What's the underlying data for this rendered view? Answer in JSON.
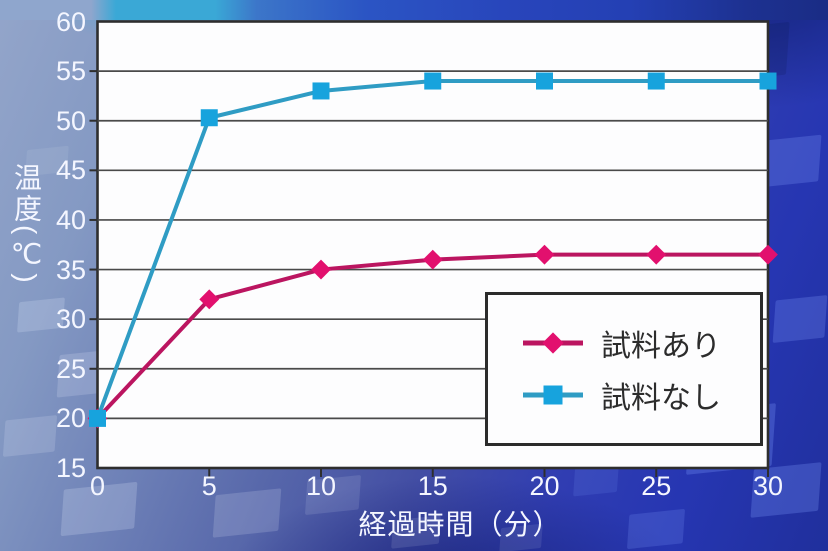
{
  "chart_data": {
    "type": "line",
    "xlabel": "経過時間（分）",
    "ylabel": "温度(℃)",
    "x": [
      0,
      5,
      10,
      15,
      20,
      25,
      30
    ],
    "xticks": [
      0,
      5,
      10,
      15,
      20,
      25,
      30
    ],
    "yticks": [
      15,
      20,
      25,
      30,
      35,
      40,
      45,
      50,
      55,
      60
    ],
    "xlim": [
      0,
      30
    ],
    "ylim": [
      15,
      60
    ],
    "grid": "horizontal-only",
    "legend_position": "inside-lower-right",
    "series": [
      {
        "name": "試料あり",
        "marker": "diamond",
        "marker_color": "#e2106e",
        "line_color": "#bb1560",
        "values": [
          20,
          32,
          35,
          36,
          36.5,
          36.5,
          36.5
        ]
      },
      {
        "name": "試料なし",
        "marker": "square",
        "marker_color": "#17a3dd",
        "line_color": "#2f9cc4",
        "values": [
          20,
          50.3,
          53,
          54,
          54,
          54,
          54
        ]
      }
    ],
    "colors": {
      "plot_background": "#fdfdfe",
      "gridline": "#4a4a4a",
      "axis_border": "#2e2e2e",
      "tick_label": "#f4f6ff",
      "legend_text": "#2c2c2c",
      "background_accent_blue": "#2d3cb8",
      "background_steel_blue": "#8ea2c9",
      "background_cyan_patch": "#3eaad8"
    }
  }
}
